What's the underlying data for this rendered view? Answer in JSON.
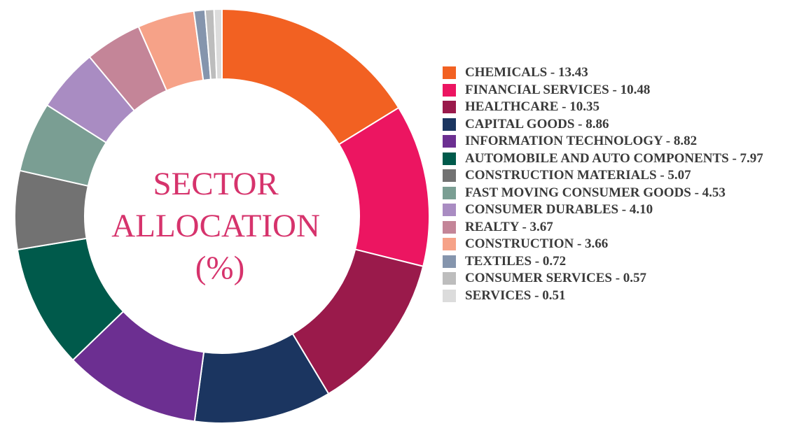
{
  "chart_data": {
    "type": "pie",
    "donut": true,
    "title": "SECTOR ALLOCATION (%)",
    "title_lines": [
      "SECTOR",
      "ALLOCATION",
      "(%)"
    ],
    "legend_placement": "right",
    "series": [
      {
        "name": "CHEMICALS",
        "label": "CHEMICALS - 13.43",
        "value": 13.43,
        "color": "#f26122"
      },
      {
        "name": "FINANCIAL SERVICES",
        "label": "FINANCIAL SERVICES - 10.48",
        "value": 10.48,
        "color": "#ec1561"
      },
      {
        "name": "HEALTHCARE",
        "label": "HEALTHCARE - 10.35",
        "value": 10.35,
        "color": "#9a1a4b"
      },
      {
        "name": "CAPITAL GOODS",
        "label": "CAPITAL GOODS - 8.86",
        "value": 8.86,
        "color": "#1b3560"
      },
      {
        "name": "INFORMATION TECHNOLOGY",
        "label": "INFORMATION TECHNOLOGY - 8.82",
        "value": 8.82,
        "color": "#6c2f91"
      },
      {
        "name": "AUTOMOBILE AND AUTO COMPONENTS",
        "label": "AUTOMOBILE AND AUTO COMPONENTS - 7.97",
        "value": 7.97,
        "color": "#005a4b"
      },
      {
        "name": "CONSTRUCTION MATERIALS",
        "label": "CONSTRUCTION MATERIALS - 5.07",
        "value": 5.07,
        "color": "#727272"
      },
      {
        "name": "FAST MOVING CONSUMER GOODS",
        "label": "FAST MOVING CONSUMER GOODS - 4.53",
        "value": 4.53,
        "color": "#7a9e93"
      },
      {
        "name": "CONSUMER DURABLES",
        "label": "CONSUMER DURABLES - 4.10",
        "value": 4.1,
        "color": "#a98cc2"
      },
      {
        "name": "REALTY",
        "label": "REALTY - 3.67",
        "value": 3.67,
        "color": "#c48598"
      },
      {
        "name": "CONSTRUCTION",
        "label": "CONSTRUCTION - 3.66",
        "value": 3.66,
        "color": "#f6a288"
      },
      {
        "name": "TEXTILES",
        "label": "TEXTILES - 0.72",
        "value": 0.72,
        "color": "#8595ad"
      },
      {
        "name": "CONSUMER SERVICES",
        "label": "CONSUMER SERVICES - 0.57",
        "value": 0.57,
        "color": "#bdbdbd"
      },
      {
        "name": "SERVICES",
        "label": "SERVICES - 0.51",
        "value": 0.51,
        "color": "#dcdcdc"
      }
    ]
  }
}
